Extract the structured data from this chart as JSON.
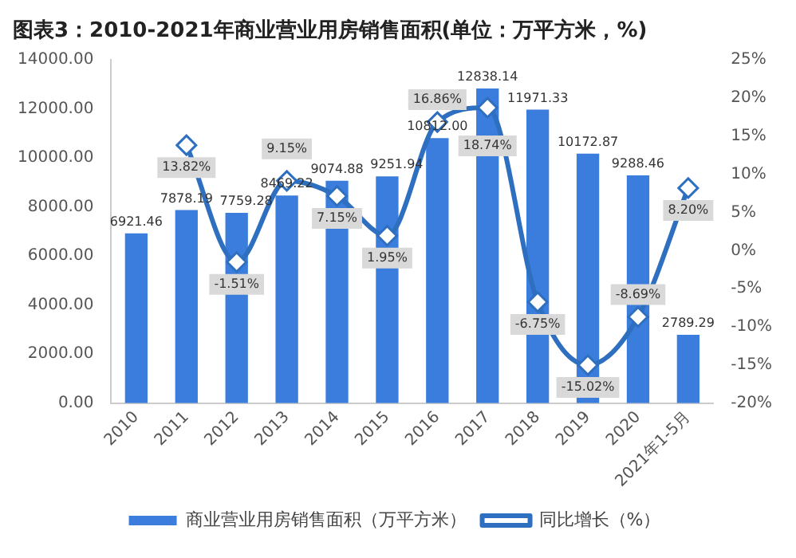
{
  "chart_data": {
    "type": "bar",
    "title": "图表3：2010-2021年商业营业用房销售面积(单位：万平方米，%)",
    "categories": [
      "2010",
      "2011",
      "2012",
      "2013",
      "2014",
      "2015",
      "2016",
      "2017",
      "2018",
      "2019",
      "2020",
      "2021年1-5月"
    ],
    "series": [
      {
        "name": "商业营业用房销售面积（万平方米）",
        "color": "#3b7ddd",
        "values": [
          6921.46,
          7878.19,
          7759.28,
          8469.22,
          9074.88,
          9251.94,
          10812.0,
          12838.14,
          11971.33,
          10172.87,
          9288.46,
          2789.29
        ],
        "value_labels": [
          "6921.46",
          "7878.19",
          "7759.28",
          "8469.22",
          "9074.88",
          "9251.94",
          "10812.00",
          "12838.14",
          "11971.33",
          "10172.87",
          "9288.46",
          "2789.29"
        ]
      },
      {
        "name": "同比增长（%）",
        "type": "line",
        "axis": "y2",
        "color": "#2f6fc0",
        "values": [
          null,
          13.82,
          -1.51,
          9.15,
          7.15,
          1.95,
          16.86,
          18.74,
          -6.75,
          -15.02,
          -8.69,
          8.2
        ],
        "value_labels": [
          null,
          "13.82%",
          "-1.51%",
          "9.15%",
          "7.15%",
          "1.95%",
          "16.86%",
          "18.74%",
          "-6.75%",
          "-15.02%",
          "-8.69%",
          "8.20%"
        ]
      }
    ],
    "marker": "diamond",
    "ylim": [
      0,
      14000
    ],
    "yticks": [
      {
        "value": 0,
        "label": "0.00"
      },
      {
        "value": 2000,
        "label": "2000.00"
      },
      {
        "value": 4000,
        "label": "4000.00"
      },
      {
        "value": 6000,
        "label": "6000.00"
      },
      {
        "value": 8000,
        "label": "8000.00"
      },
      {
        "value": 10000,
        "label": "10000.00"
      },
      {
        "value": 12000,
        "label": "12000.00"
      },
      {
        "value": 14000,
        "label": "14000.00"
      }
    ],
    "y2lim": [
      -20,
      25
    ],
    "y2ticks": [
      {
        "value": -20,
        "label": "-20%"
      },
      {
        "value": -15,
        "label": "-15%"
      },
      {
        "value": -10,
        "label": "-10%"
      },
      {
        "value": -5,
        "label": "-5%"
      },
      {
        "value": 0,
        "label": "0%"
      },
      {
        "value": 5,
        "label": "5%"
      },
      {
        "value": 10,
        "label": "10%"
      },
      {
        "value": 15,
        "label": "15%"
      },
      {
        "value": 20,
        "label": "20%"
      },
      {
        "value": 25,
        "label": "25%"
      }
    ],
    "grid": false,
    "legend": "bottom"
  }
}
